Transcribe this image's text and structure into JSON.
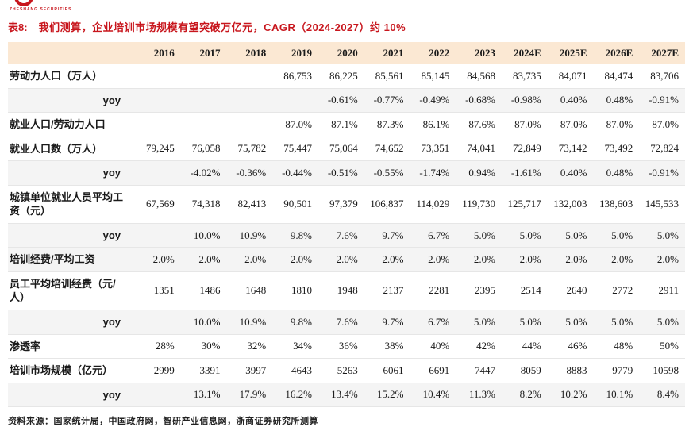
{
  "colors": {
    "accent": "#c8161d",
    "header_bg": "#fbe8d3",
    "stripe": "#f4f4f4",
    "rule": "#e6e6e6"
  },
  "brand": {
    "logo_text": "ZHESHANG SECURITIES"
  },
  "title": {
    "prefix": "表8:",
    "text": "我们测算，企业培训市场规模有望突破万亿元，CAGR（2024-2027）约 10%"
  },
  "table": {
    "columns": [
      "2016",
      "2017",
      "2018",
      "2019",
      "2020",
      "2021",
      "2022",
      "2023",
      "2024E",
      "2025E",
      "2026E",
      "2027E"
    ],
    "rows": [
      {
        "label": "劳动力人口（万人）",
        "shaded": false,
        "values": [
          "",
          "",
          "",
          "86,753",
          "86,225",
          "85,561",
          "85,145",
          "84,568",
          "83,735",
          "84,071",
          "84,474",
          "83,706"
        ]
      },
      {
        "label": "yoy",
        "shaded": true,
        "values": [
          "",
          "",
          "",
          "",
          "-0.61%",
          "-0.77%",
          "-0.49%",
          "-0.68%",
          "-0.98%",
          "0.40%",
          "0.48%",
          "-0.91%"
        ]
      },
      {
        "label": "就业人口/劳动力人口",
        "shaded": false,
        "values": [
          "",
          "",
          "",
          "87.0%",
          "87.1%",
          "87.3%",
          "86.1%",
          "87.6%",
          "87.0%",
          "87.0%",
          "87.0%",
          "87.0%"
        ]
      },
      {
        "label": "就业人口数（万人）",
        "shaded": false,
        "values": [
          "79,245",
          "76,058",
          "75,782",
          "75,447",
          "75,064",
          "74,652",
          "73,351",
          "74,041",
          "72,849",
          "73,142",
          "73,492",
          "72,824"
        ]
      },
      {
        "label": "yoy",
        "shaded": true,
        "values": [
          "",
          "-4.02%",
          "-0.36%",
          "-0.44%",
          "-0.51%",
          "-0.55%",
          "-1.74%",
          "0.94%",
          "-1.61%",
          "0.40%",
          "0.48%",
          "-0.91%"
        ]
      },
      {
        "label": "城镇单位就业人员平均工资（元）",
        "shaded": false,
        "values": [
          "67,569",
          "74,318",
          "82,413",
          "90,501",
          "97,379",
          "106,837",
          "114,029",
          "119,730",
          "125,717",
          "132,003",
          "138,603",
          "145,533"
        ]
      },
      {
        "label": "yoy",
        "shaded": true,
        "values": [
          "",
          "10.0%",
          "10.9%",
          "9.8%",
          "7.6%",
          "9.7%",
          "6.7%",
          "5.0%",
          "5.0%",
          "5.0%",
          "5.0%",
          "5.0%"
        ]
      },
      {
        "label": "培训经费/平均工资",
        "shaded": true,
        "values": [
          "2.0%",
          "2.0%",
          "2.0%",
          "2.0%",
          "2.0%",
          "2.0%",
          "2.0%",
          "2.0%",
          "2.0%",
          "2.0%",
          "2.0%",
          "2.0%"
        ]
      },
      {
        "label": "员工平均培训经费（元/人）",
        "shaded": false,
        "values": [
          "1351",
          "1486",
          "1648",
          "1810",
          "1948",
          "2137",
          "2281",
          "2395",
          "2514",
          "2640",
          "2772",
          "2911"
        ]
      },
      {
        "label": "yoy",
        "shaded": true,
        "values": [
          "",
          "10.0%",
          "10.9%",
          "9.8%",
          "7.6%",
          "9.7%",
          "6.7%",
          "5.0%",
          "5.0%",
          "5.0%",
          "5.0%",
          "5.0%"
        ]
      },
      {
        "label": "渗透率",
        "shaded": false,
        "values": [
          "28%",
          "30%",
          "32%",
          "34%",
          "36%",
          "38%",
          "40%",
          "42%",
          "44%",
          "46%",
          "48%",
          "50%"
        ]
      },
      {
        "label": "培训市场规模（亿元）",
        "shaded": false,
        "values": [
          "2999",
          "3391",
          "3997",
          "4643",
          "5263",
          "6061",
          "6691",
          "7447",
          "8059",
          "8883",
          "9779",
          "10598"
        ]
      },
      {
        "label": "yoy",
        "shaded": true,
        "values": [
          "",
          "13.1%",
          "17.9%",
          "16.2%",
          "13.4%",
          "15.2%",
          "10.4%",
          "11.3%",
          "8.2%",
          "10.2%",
          "10.1%",
          "8.4%"
        ]
      }
    ]
  },
  "footer": {
    "source": "资料来源：国家统计局，中国政府网，智研产业信息网，浙商证券研究所测算"
  }
}
